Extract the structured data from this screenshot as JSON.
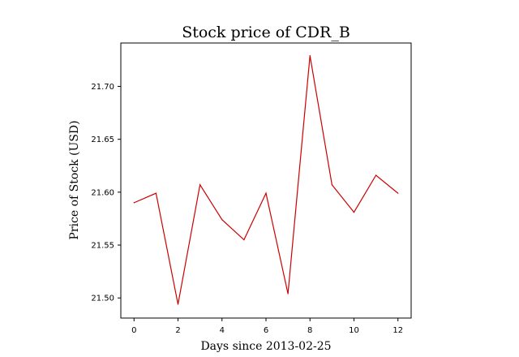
{
  "chart_data": {
    "type": "line",
    "title": "Stock price of CDR_B",
    "xlabel": "Days since 2013-02-25",
    "ylabel": "Price of Stock (USD)",
    "x": [
      0,
      1,
      2,
      3,
      4,
      5,
      6,
      7,
      8,
      9,
      10,
      11,
      12
    ],
    "series": [
      {
        "values": [
          21.59,
          21.599,
          21.494,
          21.607,
          21.574,
          21.555,
          21.599,
          21.504,
          21.729,
          21.607,
          21.581,
          21.616,
          21.599
        ],
        "color": "#cc0000"
      }
    ],
    "xlim": [
      -0.6,
      12.6
    ],
    "ylim": [
      21.481,
      21.741
    ],
    "xticks": [
      0,
      2,
      4,
      6,
      8,
      10,
      12
    ],
    "xtick_labels": [
      "0",
      "2",
      "4",
      "6",
      "8",
      "10",
      "12"
    ],
    "yticks": [
      21.5,
      21.55,
      21.6,
      21.65,
      21.7
    ],
    "ytick_labels": [
      "21.50",
      "21.55",
      "21.60",
      "21.65",
      "21.70"
    ],
    "grid": false,
    "legend": "none"
  }
}
